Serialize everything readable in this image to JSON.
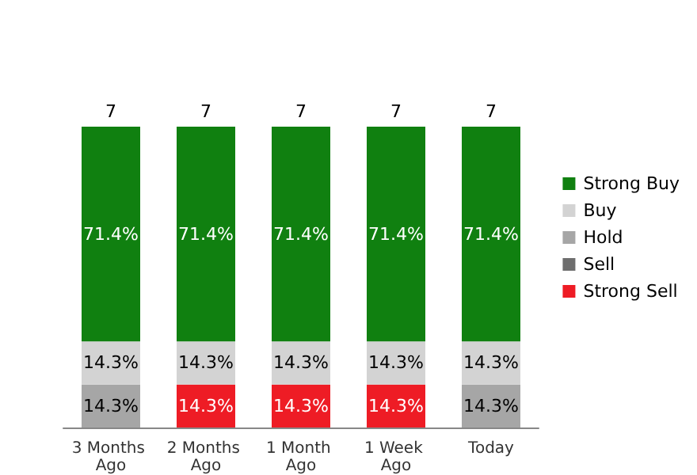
{
  "chart_data": {
    "type": "bar",
    "stacked": true,
    "categories": [
      "3 Months Ago",
      "2 Months Ago",
      "1 Month Ago",
      "1 Week Ago",
      "Today"
    ],
    "series": [
      {
        "name": "Strong Sell",
        "color": "#ee1c25",
        "values": [
          null,
          14.3,
          14.3,
          14.3,
          null
        ],
        "value_labels": [
          null,
          "14.3%",
          "14.3%",
          "14.3%",
          null
        ]
      },
      {
        "name": "Sell",
        "color": "#6e6e6e",
        "values": [
          null,
          null,
          null,
          null,
          null
        ]
      },
      {
        "name": "Hold",
        "color": "#a6a6a6",
        "values": [
          14.3,
          null,
          null,
          null,
          14.3
        ],
        "value_labels": [
          "14.3%",
          null,
          null,
          null,
          "14.3%"
        ]
      },
      {
        "name": "Buy",
        "color": "#d3d3d3",
        "values": [
          14.3,
          14.3,
          14.3,
          14.3,
          14.3
        ],
        "value_labels": [
          "14.3%",
          "14.3%",
          "14.3%",
          "14.3%",
          "14.3%"
        ]
      },
      {
        "name": "Strong Buy",
        "color": "#108010",
        "values": [
          71.4,
          71.4,
          71.4,
          71.4,
          71.4
        ],
        "value_labels": [
          "71.4%",
          "71.4%",
          "71.4%",
          "71.4%",
          "71.4%"
        ]
      }
    ],
    "annotations": [
      {
        "text": "7",
        "x": "3 Months Ago",
        "y": 100
      },
      {
        "text": "7",
        "x": "2 Months Ago",
        "y": 100
      },
      {
        "text": "7",
        "x": "1 Month Ago",
        "y": 100
      },
      {
        "text": "7",
        "x": "1 Week Ago",
        "y": 100
      },
      {
        "text": "7",
        "x": "Today",
        "y": 100
      }
    ],
    "legend": "right",
    "grid": false
  }
}
